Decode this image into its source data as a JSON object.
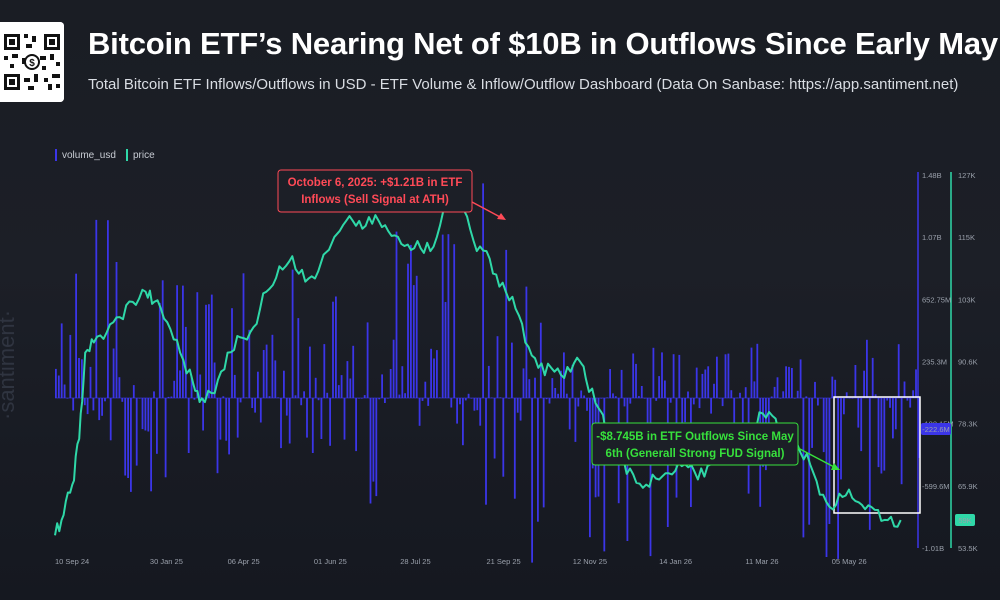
{
  "header": {
    "title": "Bitcoin ETF’s Nearing Net of $10B in Outflows Since Early May",
    "subtitle": "Total Bitcoin ETF Inflows/Outflows in USD - ETF Volume & Inflow/Outflow Dashboard (Data On Sanbase: https://app.santiment.net)"
  },
  "colors": {
    "bars": "#3b35e8",
    "price": "#2fd8a8",
    "red_annotation": "#ff4a57",
    "green_annotation": "#37e03c"
  },
  "watermark": "·santiment·",
  "chart_data": {
    "type": "bar+line",
    "legend": [
      "volume_usd",
      "price"
    ],
    "left_axis_ticks": [
      "1.48B",
      "1.07B",
      "652.75M",
      "235.3M",
      "-182.15M",
      "-599.6M",
      "-1.01B"
    ],
    "left_axis_range": [
      -1010000000,
      1480000000
    ],
    "left_axis_current": "-222.6M",
    "right_axis_ticks": [
      "127K",
      "115K",
      "103K",
      "90.6K",
      "78.3K",
      "65.9K",
      "53.5K"
    ],
    "right_axis_range": [
      53500,
      127000
    ],
    "right_axis_current": "59K",
    "x_tick_labels": [
      "10 Sep 24",
      "30 Jan 25",
      "06 Apr 25",
      "01 Jun 25",
      "28 Jul 25",
      "21 Sep 25",
      "12 Nov 25",
      "14 Jan 26",
      "11 Mar 26",
      "05 May 26"
    ],
    "x_tick_fractions": [
      0.0,
      0.11,
      0.2,
      0.3,
      0.4,
      0.5,
      0.6,
      0.7,
      0.8,
      0.9
    ],
    "price_points": [
      [
        0.0,
        56000
      ],
      [
        0.01,
        60000
      ],
      [
        0.02,
        66000
      ],
      [
        0.028,
        75000
      ],
      [
        0.035,
        92000
      ],
      [
        0.045,
        94000
      ],
      [
        0.06,
        96000
      ],
      [
        0.075,
        99000
      ],
      [
        0.09,
        102000
      ],
      [
        0.105,
        104000
      ],
      [
        0.115,
        102000
      ],
      [
        0.13,
        98000
      ],
      [
        0.145,
        92000
      ],
      [
        0.16,
        86000
      ],
      [
        0.17,
        83000
      ],
      [
        0.185,
        84000
      ],
      [
        0.2,
        92000
      ],
      [
        0.215,
        95000
      ],
      [
        0.23,
        97000
      ],
      [
        0.245,
        104000
      ],
      [
        0.26,
        109000
      ],
      [
        0.275,
        111000
      ],
      [
        0.29,
        106000
      ],
      [
        0.305,
        108000
      ],
      [
        0.33,
        116000
      ],
      [
        0.345,
        118000
      ],
      [
        0.36,
        117000
      ],
      [
        0.375,
        118000
      ],
      [
        0.39,
        115000
      ],
      [
        0.405,
        113000
      ],
      [
        0.42,
        114000
      ],
      [
        0.435,
        112000
      ],
      [
        0.45,
        120000
      ],
      [
        0.46,
        125000
      ],
      [
        0.47,
        121000
      ],
      [
        0.485,
        114000
      ],
      [
        0.5,
        112000
      ],
      [
        0.515,
        105000
      ],
      [
        0.53,
        103000
      ],
      [
        0.545,
        94000
      ],
      [
        0.56,
        89000
      ],
      [
        0.575,
        89000
      ],
      [
        0.59,
        87000
      ],
      [
        0.605,
        91000
      ],
      [
        0.615,
        87000
      ],
      [
        0.63,
        81000
      ],
      [
        0.64,
        77000
      ],
      [
        0.655,
        71000
      ],
      [
        0.67,
        68000
      ],
      [
        0.685,
        66000
      ],
      [
        0.7,
        67000
      ],
      [
        0.715,
        68000
      ],
      [
        0.73,
        70000
      ],
      [
        0.745,
        67000
      ],
      [
        0.76,
        70000
      ],
      [
        0.775,
        73000
      ],
      [
        0.79,
        75000
      ],
      [
        0.805,
        77000
      ],
      [
        0.82,
        80000
      ],
      [
        0.835,
        79000
      ],
      [
        0.845,
        76000
      ],
      [
        0.86,
        74000
      ],
      [
        0.875,
        70000
      ],
      [
        0.89,
        64000
      ],
      [
        0.905,
        62000
      ],
      [
        0.92,
        65000
      ],
      [
        0.935,
        62000
      ],
      [
        0.95,
        61000
      ],
      [
        0.965,
        59000
      ],
      [
        0.98,
        59000
      ]
    ],
    "volume_envelope": [
      [
        0.0,
        0.35,
        -0.08
      ],
      [
        0.05,
        1.0,
        -0.35
      ],
      [
        0.1,
        0.65,
        -0.55
      ],
      [
        0.15,
        0.55,
        -0.45
      ],
      [
        0.2,
        0.5,
        -0.4
      ],
      [
        0.25,
        0.78,
        -0.25
      ],
      [
        0.3,
        0.55,
        -0.28
      ],
      [
        0.35,
        0.62,
        -0.5
      ],
      [
        0.4,
        0.9,
        -0.55
      ],
      [
        0.45,
        0.8,
        -0.45
      ],
      [
        0.48,
        0.95,
        -0.55
      ],
      [
        0.5,
        1.1,
        -0.6
      ],
      [
        0.55,
        0.55,
        -0.8
      ],
      [
        0.6,
        0.35,
        -0.9
      ],
      [
        0.65,
        0.25,
        -0.7
      ],
      [
        0.7,
        0.25,
        -1.0
      ],
      [
        0.75,
        0.2,
        -0.7
      ],
      [
        0.8,
        0.25,
        -0.5
      ],
      [
        0.85,
        0.3,
        -0.8
      ],
      [
        0.9,
        0.3,
        -0.85
      ],
      [
        0.95,
        0.3,
        -0.6
      ],
      [
        1.0,
        0.25,
        -0.4
      ]
    ],
    "annotations": [
      {
        "lines": [
          "October 6, 2025: +$1.21B in ETF",
          "Inflows (Sell Signal at ATH)"
        ],
        "color": "red"
      },
      {
        "lines": [
          "-$8.745B in ETF Outflows Since May",
          "6th (Generall Strong FUD Signal)"
        ],
        "color": "green"
      }
    ]
  }
}
